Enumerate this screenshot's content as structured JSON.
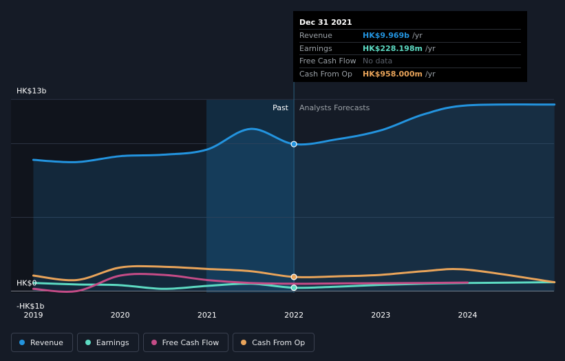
{
  "chart_data": {
    "type": "line",
    "currency": "HK$",
    "y_tick_labels": [
      "HK$13b",
      "HK$0",
      "-HK$1b"
    ],
    "ylim": [
      -1,
      13
    ],
    "x_tick_labels": [
      "2019",
      "2020",
      "2021",
      "2022",
      "2023",
      "2024"
    ],
    "xlim": [
      2019.0,
      2025.0
    ],
    "divider_year": 2022.0,
    "past_label": "Past",
    "forecast_label": "Analysts Forecasts",
    "series": [
      {
        "name": "Revenue",
        "key": "revenue",
        "color": "#2394df",
        "area": true,
        "points": [
          [
            2019.0,
            8.9
          ],
          [
            2019.5,
            8.75
          ],
          [
            2020.0,
            9.15
          ],
          [
            2020.5,
            9.25
          ],
          [
            2021.0,
            9.6
          ],
          [
            2021.5,
            11.0
          ],
          [
            2022.0,
            9.969
          ],
          [
            2022.5,
            10.3
          ],
          [
            2023.0,
            10.9
          ],
          [
            2023.5,
            12.0
          ],
          [
            2024.0,
            12.6
          ],
          [
            2025.0,
            12.65
          ]
        ],
        "marker": [
          2022.0,
          9.969
        ]
      },
      {
        "name": "Earnings",
        "key": "earnings",
        "color": "#5ddbc3",
        "area": false,
        "points": [
          [
            2019.0,
            0.55
          ],
          [
            2019.5,
            0.45
          ],
          [
            2020.0,
            0.4
          ],
          [
            2020.5,
            0.15
          ],
          [
            2021.0,
            0.35
          ],
          [
            2021.5,
            0.5
          ],
          [
            2022.0,
            0.228
          ],
          [
            2022.5,
            0.3
          ],
          [
            2023.0,
            0.42
          ],
          [
            2023.5,
            0.5
          ],
          [
            2024.0,
            0.55
          ],
          [
            2025.0,
            0.6
          ]
        ],
        "marker": [
          2022.0,
          0.228
        ]
      },
      {
        "name": "Free Cash Flow",
        "key": "fcf",
        "color": "#c54c87",
        "area": false,
        "points": [
          [
            2019.0,
            0.15
          ],
          [
            2019.5,
            0.0
          ],
          [
            2020.0,
            1.05
          ],
          [
            2020.5,
            1.1
          ],
          [
            2021.0,
            0.75
          ],
          [
            2021.5,
            0.55
          ],
          [
            2022.0,
            0.5
          ],
          [
            2022.5,
            0.52
          ],
          [
            2023.0,
            0.53
          ],
          [
            2023.5,
            0.55
          ],
          [
            2024.0,
            0.58
          ]
        ]
      },
      {
        "name": "Cash From Op",
        "key": "cfo",
        "color": "#e9a45a",
        "area": false,
        "points": [
          [
            2019.0,
            1.05
          ],
          [
            2019.5,
            0.75
          ],
          [
            2020.0,
            1.6
          ],
          [
            2020.5,
            1.65
          ],
          [
            2021.0,
            1.5
          ],
          [
            2021.5,
            1.35
          ],
          [
            2022.0,
            0.958
          ],
          [
            2022.5,
            1.0
          ],
          [
            2023.0,
            1.1
          ],
          [
            2023.5,
            1.35
          ],
          [
            2024.0,
            1.45
          ],
          [
            2025.0,
            0.6
          ]
        ],
        "marker": [
          2022.0,
          0.958
        ]
      }
    ]
  },
  "tooltip": {
    "date": "Dec 31 2021",
    "rows": [
      {
        "label": "Revenue",
        "value": "HK$9.969b",
        "unit": "/yr",
        "color": "#2394df"
      },
      {
        "label": "Earnings",
        "value": "HK$228.198m",
        "unit": "/yr",
        "color": "#5ddbc3"
      },
      {
        "label": "Free Cash Flow",
        "value": "No data",
        "unit": "",
        "color": "#5b616b"
      },
      {
        "label": "Cash From Op",
        "value": "HK$958.000m",
        "unit": "/yr",
        "color": "#e9a45a"
      }
    ]
  },
  "legend": [
    {
      "label": "Revenue",
      "color": "#2394df"
    },
    {
      "label": "Earnings",
      "color": "#5ddbc3"
    },
    {
      "label": "Free Cash Flow",
      "color": "#c54c87"
    },
    {
      "label": "Cash From Op",
      "color": "#e9a45a"
    }
  ]
}
